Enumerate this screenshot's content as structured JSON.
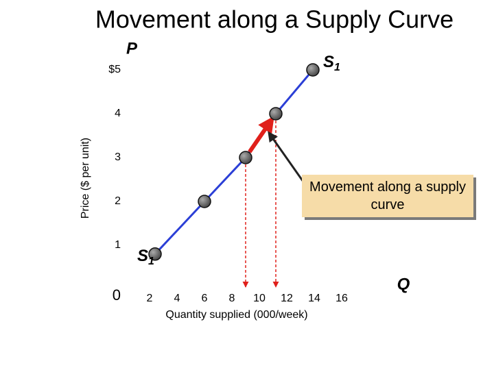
{
  "chart_data": {
    "type": "line",
    "title": "Movement along a Supply Curve",
    "y_axis_label": "Price ($ per unit)",
    "x_axis_label": "Quantity supplied (000/week)",
    "y_axis_symbol": "P",
    "x_axis_symbol": "Q",
    "curve_label": {
      "text": "S",
      "sub": "1"
    },
    "annotation": "Movement along a supply curve",
    "x": [
      2.4,
      6,
      9,
      11.2,
      13.9
    ],
    "values": [
      0.8,
      2,
      3,
      4,
      5
    ],
    "color": "#2b3fd6",
    "marker_color": "#555555",
    "highlight_color": "#e0201b",
    "highlight_from": 2,
    "highlight_to": 3,
    "xlim": [
      0,
      20
    ],
    "ylim": [
      0,
      5
    ],
    "xticks": [
      2,
      4,
      6,
      8,
      10,
      12,
      14,
      16
    ],
    "yticks": [
      0,
      1,
      2,
      3,
      4,
      {
        "value": 5,
        "label": "$5"
      }
    ]
  }
}
